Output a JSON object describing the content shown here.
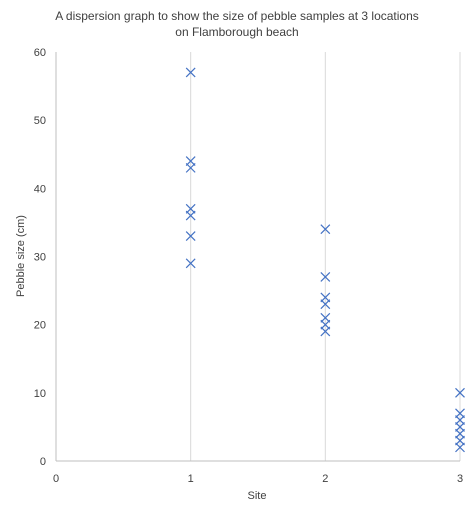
{
  "chart_data": {
    "type": "scatter",
    "title": "A dispersion  graph to show the size of pebble samples at 3 locations",
    "subtitle": "on Flamborough beach",
    "xlabel": "Site",
    "ylabel": "Pebble size (cm)",
    "xlim": [
      0,
      3
    ],
    "ylim": [
      0,
      60
    ],
    "x_ticks": [
      0,
      1,
      2,
      3
    ],
    "y_ticks": [
      0,
      10,
      20,
      30,
      40,
      50,
      60
    ],
    "grid": "vertical",
    "legend": "none",
    "marker": "x",
    "marker_color": "#4472C4",
    "series": [
      {
        "points": [
          [
            1,
            57
          ],
          [
            1,
            44
          ],
          [
            1,
            43
          ],
          [
            1,
            37
          ],
          [
            1,
            36
          ],
          [
            1,
            33
          ],
          [
            1,
            29
          ],
          [
            2,
            34
          ],
          [
            2,
            27
          ],
          [
            2,
            24
          ],
          [
            2,
            23
          ],
          [
            2,
            21
          ],
          [
            2,
            20
          ],
          [
            2,
            19
          ],
          [
            3,
            10
          ],
          [
            3,
            7
          ],
          [
            3,
            6
          ],
          [
            3,
            5
          ],
          [
            3,
            4
          ],
          [
            3,
            3
          ],
          [
            3,
            2
          ]
        ]
      }
    ]
  }
}
